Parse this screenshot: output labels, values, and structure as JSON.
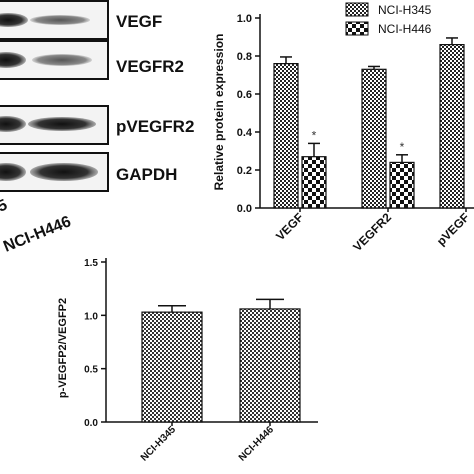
{
  "blot": {
    "labels": [
      "VEGF",
      "VEGFR2",
      "pVEGFR2",
      "GAPDH"
    ],
    "lane_labels": [
      "5",
      "NCI-H446"
    ]
  },
  "chart_data": [
    {
      "type": "bar",
      "title": "",
      "xlabel": "",
      "ylabel": "Relative protein expression",
      "ylim": [
        0.0,
        1.0
      ],
      "yticks": [
        "0.0",
        "0.2",
        "0.4",
        "0.6",
        "0.8",
        "1.0"
      ],
      "categories": [
        "VEGF",
        "VEGFR2",
        "pVEGF"
      ],
      "series": [
        {
          "name": "NCI-H345",
          "values": [
            0.76,
            0.73,
            0.86
          ],
          "errors": [
            0.035,
            0.015,
            0.035
          ],
          "pattern": "dense-check"
        },
        {
          "name": "NCI-H446",
          "values": [
            0.27,
            0.24,
            null
          ],
          "errors": [
            0.07,
            0.04,
            null
          ],
          "pattern": "large-check"
        }
      ],
      "annotations": [
        "*",
        "*"
      ],
      "legend": "top-right",
      "grid": false
    },
    {
      "type": "bar",
      "title": "",
      "xlabel": "",
      "ylabel": "p-VEGFP2/VEGFP2",
      "ylim": [
        0.0,
        1.5
      ],
      "yticks": [
        "0.0",
        "0.5",
        "1.0",
        "1.5"
      ],
      "categories": [
        "NCI-H345",
        "NCI-H446"
      ],
      "series": [
        {
          "name": "",
          "values": [
            1.03,
            1.06
          ],
          "errors": [
            0.06,
            0.09
          ]
        }
      ],
      "grid": false
    }
  ]
}
